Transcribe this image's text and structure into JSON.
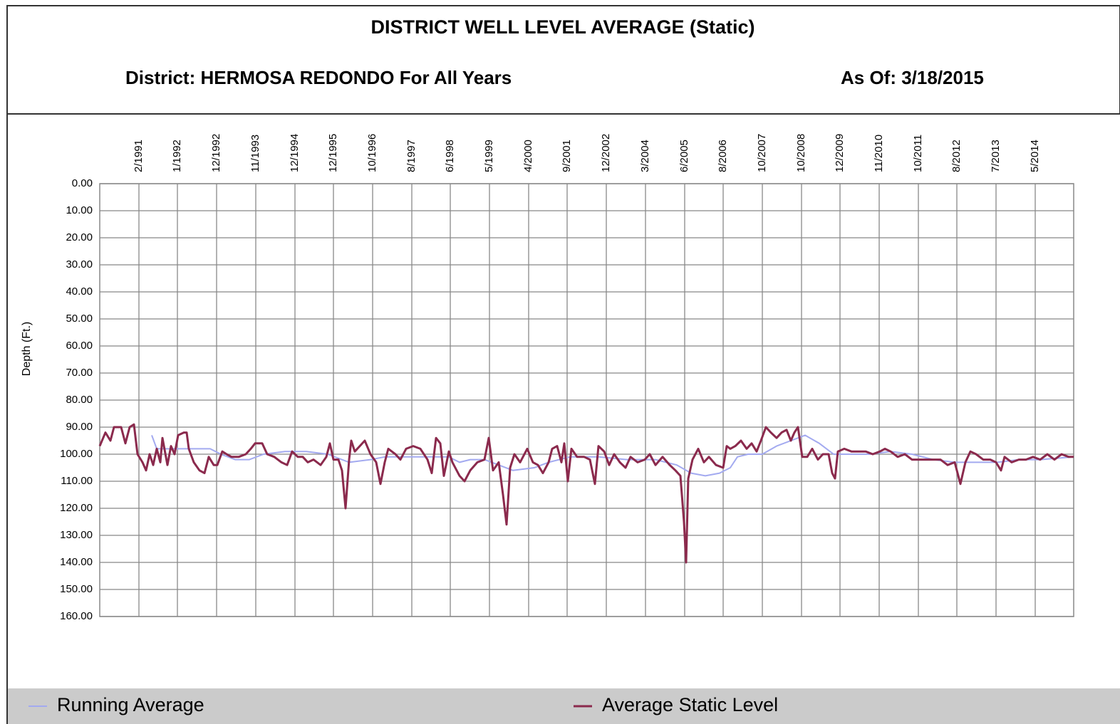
{
  "chart_data": {
    "type": "line",
    "title": "DISTRICT WELL LEVEL AVERAGE (Static)",
    "subtitle": "District: HERMOSA REDONDO For All Years",
    "as_of": "As Of: 3/18/2015",
    "ylabel": "Depth (Ft.)",
    "y_reversed": true,
    "grid": true,
    "legend": "bottom",
    "xlim": [
      0,
      1367
    ],
    "xticks": [
      {
        "value": 55,
        "label": "2/1991"
      },
      {
        "value": 109,
        "label": "1/1992"
      },
      {
        "value": 164,
        "label": "12/1992"
      },
      {
        "value": 219,
        "label": "11/1993"
      },
      {
        "value": 274,
        "label": "12/1994"
      },
      {
        "value": 328,
        "label": "12/1995"
      },
      {
        "value": 383,
        "label": "10/1996"
      },
      {
        "value": 438,
        "label": "8/1997"
      },
      {
        "value": 492,
        "label": "6/1998"
      },
      {
        "value": 547,
        "label": "5/1999"
      },
      {
        "value": 602,
        "label": "4/2000"
      },
      {
        "value": 656,
        "label": "9/2001"
      },
      {
        "value": 711,
        "label": "12/2002"
      },
      {
        "value": 766,
        "label": "3/2004"
      },
      {
        "value": 821,
        "label": "6/2005"
      },
      {
        "value": 875,
        "label": "8/2006"
      },
      {
        "value": 930,
        "label": "10/2007"
      },
      {
        "value": 985,
        "label": "10/2008"
      },
      {
        "value": 1039,
        "label": "12/2009"
      },
      {
        "value": 1094,
        "label": "11/2010"
      },
      {
        "value": 1149,
        "label": "10/2011"
      },
      {
        "value": 1203,
        "label": "8/2012"
      },
      {
        "value": 1258,
        "label": "7/2013"
      },
      {
        "value": 1313,
        "label": "5/2014"
      }
    ],
    "ylim": [
      0,
      160
    ],
    "yticks": [
      {
        "value": 0,
        "label": "0.00"
      },
      {
        "value": 10,
        "label": "10.00"
      },
      {
        "value": 20,
        "label": "20.00"
      },
      {
        "value": 30,
        "label": "30.00"
      },
      {
        "value": 40,
        "label": "40.00"
      },
      {
        "value": 50,
        "label": "50.00"
      },
      {
        "value": 60,
        "label": "60.00"
      },
      {
        "value": 70,
        "label": "70.00"
      },
      {
        "value": 80,
        "label": "80.00"
      },
      {
        "value": 90,
        "label": "90.00"
      },
      {
        "value": 100,
        "label": "100.00"
      },
      {
        "value": 110,
        "label": "110.00"
      },
      {
        "value": 120,
        "label": "120.00"
      },
      {
        "value": 130,
        "label": "130.00"
      },
      {
        "value": 140,
        "label": "140.00"
      },
      {
        "value": 150,
        "label": "150.00"
      },
      {
        "value": 160,
        "label": "160.00"
      }
    ],
    "series": [
      {
        "name": "Running Average",
        "color": "#a3aaf0",
        "width": 2,
        "x": [
          73,
          80,
          100,
          120,
          140,
          155,
          170,
          190,
          210,
          230,
          260,
          290,
          320,
          350,
          380,
          400,
          430,
          460,
          490,
          505,
          520,
          540,
          560,
          580,
          610,
          630,
          660,
          700,
          740,
          780,
          810,
          830,
          850,
          870,
          885,
          895,
          910,
          930,
          950,
          970,
          990,
          1010,
          1030,
          1050,
          1080,
          1110,
          1140,
          1170,
          1200,
          1230,
          1260,
          1290,
          1320,
          1367
        ],
        "values": [
          93,
          98,
          98,
          98,
          98,
          98,
          100,
          102,
          102,
          100,
          99,
          99,
          100,
          103,
          102,
          101,
          101,
          101,
          101,
          103,
          102,
          102,
          104,
          106,
          105,
          103,
          101,
          101,
          102,
          102,
          104,
          107,
          108,
          107,
          105,
          101,
          100,
          100,
          97,
          95,
          93,
          96,
          100,
          100,
          100,
          99,
          100,
          102,
          103,
          103,
          103,
          102,
          102,
          101
        ]
      },
      {
        "name": "Average Static Level",
        "color": "#8b2a4d",
        "width": 3,
        "x": [
          0,
          8,
          15,
          20,
          30,
          36,
          42,
          48,
          53,
          60,
          65,
          70,
          75,
          80,
          85,
          88,
          95,
          100,
          105,
          110,
          118,
          122,
          125,
          132,
          140,
          147,
          153,
          160,
          165,
          172,
          178,
          185,
          195,
          205,
          212,
          218,
          228,
          235,
          245,
          255,
          263,
          270,
          278,
          285,
          292,
          300,
          310,
          318,
          323,
          328,
          335,
          340,
          345,
          350,
          353,
          358,
          365,
          372,
          380,
          388,
          394,
          400,
          405,
          415,
          422,
          430,
          440,
          450,
          460,
          466,
          472,
          478,
          483,
          490,
          495,
          505,
          512,
          520,
          530,
          540,
          546,
          552,
          560,
          566,
          571,
          576,
          582,
          590,
          600,
          608,
          615,
          622,
          630,
          635,
          642,
          648,
          652,
          657,
          662,
          670,
          680,
          688,
          695,
          700,
          708,
          715,
          722,
          730,
          738,
          745,
          755,
          765,
          772,
          780,
          790,
          800,
          808,
          815,
          820,
          823,
          826,
          832,
          840,
          848,
          855,
          865,
          875,
          880,
          885,
          892,
          900,
          908,
          915,
          922,
          928,
          935,
          942,
          950,
          957,
          964,
          970,
          975,
          980,
          986,
          993,
          1000,
          1008,
          1015,
          1023,
          1028,
          1032,
          1036,
          1045,
          1055,
          1065,
          1075,
          1085,
          1095,
          1102,
          1110,
          1120,
          1130,
          1140,
          1150,
          1160,
          1170,
          1180,
          1190,
          1200,
          1208,
          1215,
          1222,
          1230,
          1240,
          1250,
          1258,
          1265,
          1270,
          1280,
          1290,
          1300,
          1310,
          1320,
          1330,
          1340,
          1350,
          1360,
          1367
        ],
        "values": [
          97,
          92,
          95,
          90,
          90,
          96,
          90,
          89,
          100,
          103,
          106,
          100,
          104,
          98,
          103,
          94,
          104,
          97,
          100,
          93,
          92,
          92,
          98,
          103,
          106,
          107,
          101,
          104,
          104,
          99,
          100,
          101,
          101,
          100,
          98,
          96,
          96,
          100,
          101,
          103,
          104,
          99,
          101,
          101,
          103,
          102,
          104,
          101,
          96,
          102,
          102,
          106,
          120,
          102,
          95,
          99,
          97,
          95,
          100,
          103,
          111,
          103,
          98,
          100,
          102,
          98,
          97,
          98,
          102,
          107,
          94,
          96,
          108,
          99,
          103,
          108,
          110,
          106,
          103,
          102,
          94,
          106,
          103,
          115,
          126,
          105,
          100,
          103,
          98,
          103,
          104,
          107,
          103,
          98,
          97,
          103,
          96,
          110,
          98,
          101,
          101,
          102,
          111,
          97,
          99,
          104,
          100,
          103,
          105,
          101,
          103,
          102,
          100,
          104,
          101,
          104,
          106,
          108,
          125,
          140,
          109,
          102,
          98,
          103,
          101,
          104,
          105,
          97,
          98,
          97,
          95,
          98,
          96,
          99,
          95,
          90,
          92,
          94,
          92,
          91,
          95,
          92,
          90,
          101,
          101,
          98,
          102,
          100,
          100,
          107,
          109,
          99,
          98,
          99,
          99,
          99,
          100,
          99,
          98,
          99,
          101,
          100,
          102,
          102,
          102,
          102,
          102,
          104,
          103,
          111,
          103,
          99,
          100,
          102,
          102,
          103,
          106,
          101,
          103,
          102,
          102,
          101,
          102,
          100,
          102,
          100,
          101,
          101
        ]
      }
    ]
  }
}
